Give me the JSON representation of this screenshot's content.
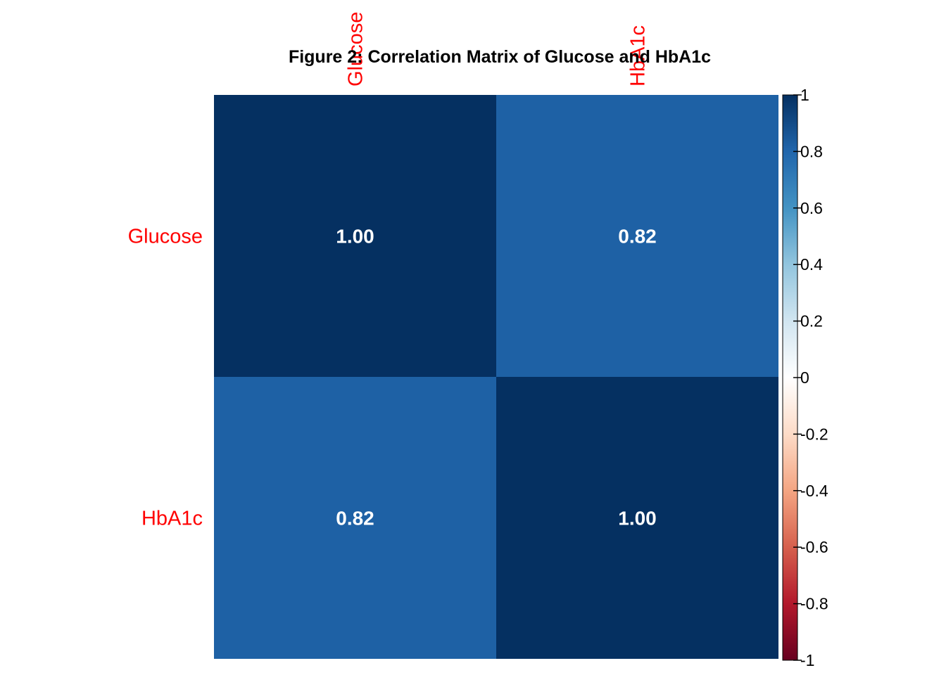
{
  "chart_data": {
    "type": "heatmap",
    "title": "Figure 2: Correlation Matrix of Glucose and HbA1c",
    "row_labels": [
      "Glucose",
      "HbA1c"
    ],
    "col_labels": [
      "Glucose",
      "HbA1c"
    ],
    "values": [
      [
        1.0,
        0.82
      ],
      [
        0.82,
        1.0
      ]
    ],
    "cell_text": [
      [
        "1.00",
        "0.82"
      ],
      [
        "0.82",
        "1.00"
      ]
    ],
    "colorbar": {
      "range": [
        -1,
        1
      ],
      "ticks": [
        1,
        0.8,
        0.6,
        0.4,
        0.2,
        0,
        -0.2,
        -0.4,
        -0.6,
        -0.8,
        -1
      ],
      "tick_labels": [
        "1",
        "0.8",
        "0.6",
        "0.4",
        "0.2",
        "0",
        "-0.2",
        "-0.4",
        "-0.6",
        "-0.8",
        "-1"
      ],
      "colors": [
        "#67001F",
        "#B2182B",
        "#D6604D",
        "#F4A582",
        "#FDDBC7",
        "#FFFFFF",
        "#D1E5F0",
        "#92C5DE",
        "#4393C3",
        "#2166AC",
        "#053061"
      ]
    },
    "label_color": "#FF0000",
    "cell_text_color": "#FFFFFF"
  }
}
